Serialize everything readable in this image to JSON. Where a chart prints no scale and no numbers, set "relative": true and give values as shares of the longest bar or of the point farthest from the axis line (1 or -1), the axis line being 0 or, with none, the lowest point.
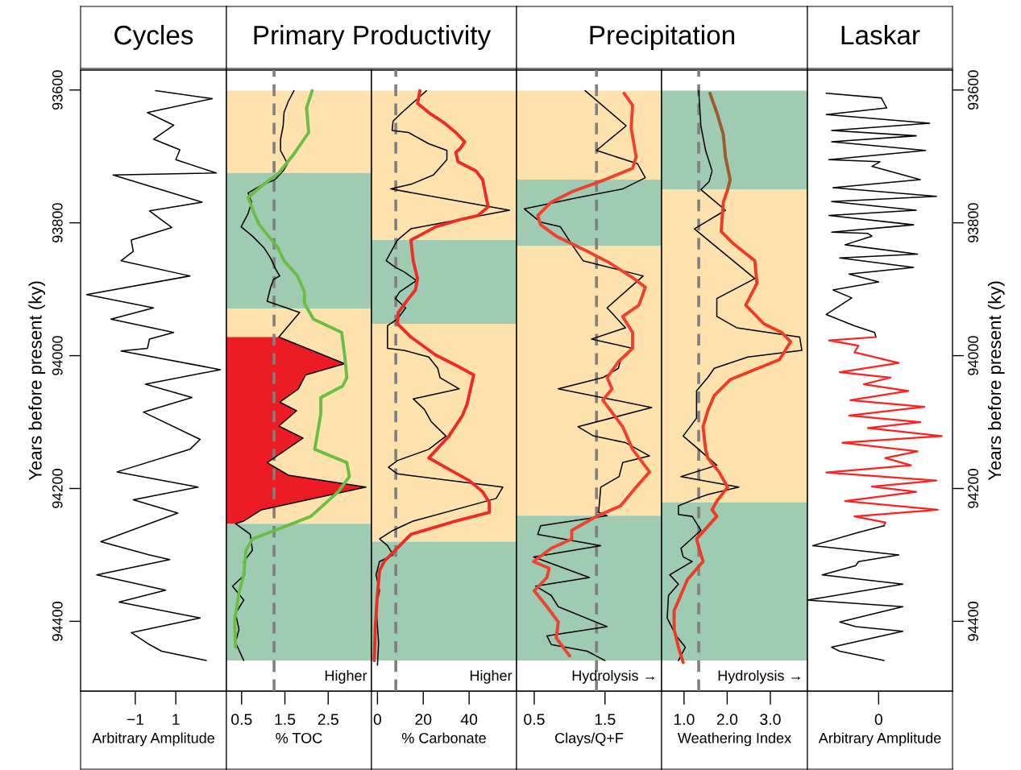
{
  "chart_data": [
    {
      "type": "line",
      "orientation": "horizontal",
      "title": "Cycles",
      "xlabel": "Arbitrary Amplitude",
      "ylabel": "Years before present (ky)",
      "xlim": [
        -3.7,
        3.5
      ],
      "xticks": [
        {
          "value": -1,
          "label": "−1"
        },
        1
      ],
      "ylim": [
        94505,
        93570
      ],
      "yticks": [
        93600,
        93800,
        94000,
        94200,
        94400
      ],
      "series": [
        {
          "type": "line",
          "color": "#000000",
          "x": [
            93601,
            93613,
            93634,
            93653,
            93674,
            93690,
            93705,
            93725,
            93728,
            93769,
            93782,
            93807,
            93826,
            93843,
            93857,
            93880,
            93908,
            93928,
            93945,
            93965,
            93975,
            93989,
            93993,
            94021,
            94043,
            94063,
            94085,
            94126,
            94141,
            94175,
            94198,
            94217,
            94237,
            94280,
            94300,
            94307,
            94330,
            94353,
            94371,
            94395,
            94417,
            94435,
            94445,
            94459
          ],
          "values": [
            0.0,
            2.8,
            -0.4,
            0.9,
            -0.1,
            1.2,
            1.0,
            3.0,
            -2.1,
            2.3,
            -0.3,
            0.8,
            -1.2,
            -1.1,
            -1.7,
            1.7,
            -3.4,
            -0.1,
            -2.2,
            0.9,
            -0.3,
            -0.4,
            -1.7,
            3.2,
            -0.5,
            1.8,
            -0.6,
            2.2,
            1.7,
            -1.9,
            2.1,
            -1.1,
            1.1,
            -2.7,
            -0.3,
            0.7,
            -2.9,
            0.5,
            -1.8,
            2.2,
            -1.2,
            -0.3,
            0.3,
            2.5
          ]
        }
      ]
    },
    {
      "type": "line",
      "orientation": "horizontal",
      "title": "Primary Productivity",
      "xlabel": "% TOC",
      "tick_labels": "x",
      "xlim": [
        0.15,
        3.5
      ],
      "xticks": [
        0.5,
        1.5,
        2.5
      ],
      "ylim": [
        94505,
        93570
      ],
      "bands": [
        {
          "axis": "y",
          "from": 93601,
          "to": 93725,
          "color": "#fde2ad"
        },
        {
          "axis": "y",
          "from": 93725,
          "to": 93929,
          "color": "#9ecbb2"
        },
        {
          "axis": "y",
          "from": 93929,
          "to": 94253,
          "color": "#fde2ad"
        },
        {
          "axis": "y",
          "from": 94253,
          "to": 94459,
          "color": "#9ecbb2"
        }
      ],
      "ref_lines": [
        {
          "axis": "x",
          "value": 1.25,
          "color": "#808080",
          "line_style": "dashed"
        }
      ],
      "annotations": [
        "Higher"
      ],
      "series": [
        {
          "type": "area",
          "color": "#ed1c24",
          "x": [
            93972,
            94012,
            94029,
            94050,
            94070,
            94083,
            94106,
            94124,
            94161,
            94180,
            94198,
            94232,
            94249,
            94253
          ],
          "values": [
            1.36,
            2.88,
            1.98,
            1.81,
            1.38,
            1.77,
            1.36,
            1.92,
            1.09,
            1.58,
            3.37,
            0.96,
            0.55,
            0.36
          ]
        },
        {
          "type": "line",
          "color": "#000000",
          "x": [
            93601,
            93617,
            93634,
            93654,
            93674,
            93691,
            93711,
            93722,
            93735,
            93745,
            93755,
            93769,
            93786,
            93806,
            93820,
            93837,
            93853,
            93870,
            93880,
            93885,
            93897,
            93918,
            93935,
            93972,
            94012,
            94029,
            94050,
            94070,
            94083,
            94106,
            94124,
            94161,
            94180,
            94198,
            94232,
            94249,
            94253,
            94269,
            94293,
            94310,
            94330,
            94347,
            94368,
            94388,
            94412,
            94432,
            94459
          ],
          "values": [
            1.71,
            1.58,
            1.48,
            1.46,
            1.4,
            1.4,
            1.56,
            1.46,
            1.27,
            0.91,
            0.65,
            0.73,
            0.65,
            0.49,
            0.75,
            1.01,
            1.17,
            1.29,
            1.38,
            1.24,
            1.17,
            1.09,
            1.84,
            1.36,
            2.88,
            1.98,
            1.81,
            1.38,
            1.77,
            1.36,
            1.92,
            1.09,
            1.58,
            3.37,
            0.96,
            0.55,
            0.36,
            0.7,
            0.75,
            0.55,
            0.57,
            0.29,
            0.55,
            0.36,
            0.44,
            0.36,
            0.55
          ]
        },
        {
          "type": "line",
          "color": "#6cbd45",
          "x": [
            93601,
            93627,
            93664,
            93698,
            93725,
            93742,
            93762,
            93789,
            93803,
            93820,
            93837,
            93857,
            93880,
            93904,
            93921,
            93945,
            93965,
            93999,
            94033,
            94046,
            94063,
            94087,
            94141,
            94161,
            94182,
            94205,
            94242,
            94263,
            94276,
            94293,
            94330,
            94357,
            94398,
            94439
          ],
          "values": [
            2.13,
            2.0,
            2.05,
            1.69,
            1.36,
            1.01,
            0.65,
            0.81,
            0.91,
            1.12,
            1.33,
            1.48,
            1.79,
            1.95,
            1.95,
            2.16,
            2.81,
            2.88,
            2.93,
            2.83,
            2.33,
            2.33,
            2.19,
            2.93,
            2.99,
            2.73,
            2.1,
            1.27,
            0.75,
            0.6,
            0.55,
            0.44,
            0.34,
            0.36
          ]
        }
      ]
    },
    {
      "type": "line",
      "orientation": "horizontal",
      "xlabel": "% Carbonate",
      "tick_labels": "x",
      "xlim": [
        -2.6,
        60.7
      ],
      "xticks": [
        0,
        20,
        40
      ],
      "ylim": [
        94505,
        93570
      ],
      "bands": [
        {
          "axis": "y",
          "from": 93601,
          "to": 93826,
          "color": "#fde2ad"
        },
        {
          "axis": "y",
          "from": 93826,
          "to": 93952,
          "color": "#9ecbb2"
        },
        {
          "axis": "y",
          "from": 93952,
          "to": 94280,
          "color": "#fde2ad"
        },
        {
          "axis": "y",
          "from": 94280,
          "to": 94459,
          "color": "#9ecbb2"
        }
      ],
      "ref_lines": [
        {
          "axis": "x",
          "value": 8,
          "color": "#808080",
          "line_style": "dashed"
        }
      ],
      "annotations": [
        "Higher"
      ],
      "series": [
        {
          "type": "line",
          "color": "#000000",
          "x": [
            93601,
            93613,
            93634,
            93647,
            93661,
            93664,
            93681,
            93691,
            93705,
            93728,
            93742,
            93749,
            93781,
            93809,
            93826,
            93857,
            93867,
            93874,
            93887,
            93904,
            93914,
            93928,
            93945,
            93955,
            93989,
            93992,
            94002,
            94019,
            94033,
            94050,
            94065,
            94081,
            94099,
            94121,
            94141,
            94158,
            94168,
            94178,
            94198,
            94215,
            94249,
            94263,
            94276,
            94286,
            94300,
            94310,
            94330,
            94354,
            94378,
            94432,
            94466
          ],
          "values": [
            21.4,
            17.5,
            10.7,
            6.8,
            6.4,
            13.6,
            22.4,
            30.3,
            30.3,
            24.4,
            14.6,
            5.8,
            57.6,
            14.6,
            8.7,
            3.8,
            7.8,
            11.7,
            17.0,
            9.7,
            7.8,
            12.3,
            8.7,
            4.4,
            4.4,
            11.7,
            22.4,
            26.3,
            27.3,
            35.7,
            15.6,
            20.5,
            23.4,
            29.9,
            22.4,
            8.7,
            4.8,
            8.7,
            54.7,
            51.8,
            15.6,
            6.8,
            0.9,
            4.4,
            6.8,
            0.9,
            -0.6,
            0.9,
            -0.6,
            0.5,
            0.0
          ]
        },
        {
          "type": "line",
          "color": "#ee2b24",
          "x": [
            93601,
            93620,
            93634,
            93650,
            93664,
            93678,
            93688,
            93694,
            93708,
            93722,
            93735,
            93752,
            93776,
            93789,
            93796,
            93806,
            93826,
            93857,
            93884,
            93901,
            93914,
            93935,
            93952,
            93972,
            93999,
            94016,
            94029,
            94073,
            94090,
            94121,
            94154,
            94171,
            94188,
            94205,
            94221,
            94236,
            94249,
            94269,
            94293,
            94310,
            94324,
            94364,
            94412,
            94459
          ],
          "values": [
            18.5,
            17.5,
            22.4,
            29.3,
            34.2,
            38.1,
            36.1,
            34.2,
            35.1,
            43.0,
            45.9,
            46.9,
            48.3,
            43.9,
            35.1,
            25.4,
            14.6,
            15.6,
            17.5,
            16.6,
            13.6,
            9.1,
            8.7,
            14.6,
            25.4,
            35.1,
            42.0,
            39.1,
            37.1,
            31.2,
            22.4,
            31.2,
            40.0,
            45.9,
            48.8,
            48.8,
            34.2,
            14.6,
            7.8,
            2.9,
            0.9,
            -0.1,
            -1.0,
            -1.4
          ]
        }
      ]
    },
    {
      "type": "line",
      "orientation": "horizontal",
      "title": "Precipitation",
      "xlabel": "Clays/Q+F",
      "tick_labels": "x",
      "xlim": [
        0.25,
        2.3
      ],
      "xticks": [
        0.5,
        1.5
      ],
      "ylim": [
        94505,
        93570
      ],
      "bands": [
        {
          "axis": "y",
          "from": 93601,
          "to": 93735,
          "color": "#fde2ad"
        },
        {
          "axis": "y",
          "from": 93735,
          "to": 93835,
          "color": "#9ecbb2"
        },
        {
          "axis": "y",
          "from": 93835,
          "to": 94241,
          "color": "#fde2ad"
        },
        {
          "axis": "y",
          "from": 94241,
          "to": 94459,
          "color": "#9ecbb2"
        }
      ],
      "ref_lines": [
        {
          "axis": "x",
          "value": 1.38,
          "color": "#808080",
          "line_style": "dashed"
        }
      ],
      "annotations": [
        "Hydrolysis →"
      ],
      "series": [
        {
          "type": "line",
          "color": "#000000",
          "x": [
            93601,
            93654,
            93691,
            93711,
            93732,
            93749,
            93762,
            93779,
            93799,
            93806,
            93837,
            93857,
            93880,
            93928,
            93958,
            93975,
            93989,
            94006,
            94019,
            94033,
            94050,
            94078,
            94107,
            94121,
            94131,
            94151,
            94161,
            94182,
            94198,
            94236,
            94241,
            94256,
            94269,
            94286,
            94303,
            94334,
            94347,
            94361,
            94378,
            94408,
            94422,
            94435,
            94445,
            94459
          ],
          "values": [
            1.22,
            1.8,
            1.38,
            1.96,
            2.07,
            1.75,
            1.12,
            0.36,
            0.59,
            0.87,
            1.06,
            1.19,
            2.04,
            1.53,
            1.79,
            1.31,
            1.89,
            1.72,
            1.69,
            1.47,
            0.84,
            2.16,
            1.12,
            1.34,
            1.79,
            2.13,
            1.75,
            1.7,
            1.44,
            1.41,
            1.53,
            0.59,
            0.55,
            1.44,
            0.49,
            1.28,
            0.52,
            0.74,
            0.84,
            1.53,
            0.68,
            0.74,
            1.25,
            1.5
          ]
        },
        {
          "type": "line",
          "color": "#ef4130",
          "x": [
            93605,
            93623,
            93657,
            93701,
            93718,
            93735,
            93752,
            93769,
            93789,
            93803,
            93820,
            93843,
            93860,
            93884,
            93897,
            93924,
            93941,
            93965,
            93989,
            94009,
            94033,
            94050,
            94067,
            94107,
            94141,
            94175,
            94198,
            94226,
            94242,
            94263,
            94276,
            94290,
            94310,
            94320,
            94334,
            94354,
            94378,
            94401,
            94425,
            94452
          ],
          "values": [
            1.77,
            1.89,
            1.87,
            1.94,
            1.89,
            1.5,
            1.06,
            0.74,
            0.55,
            0.59,
            0.81,
            1.25,
            1.56,
            1.91,
            2.07,
            1.98,
            1.75,
            1.89,
            1.89,
            1.69,
            1.53,
            1.6,
            1.47,
            1.75,
            1.89,
            2.13,
            1.94,
            1.72,
            1.38,
            1.03,
            1.03,
            0.74,
            0.49,
            0.71,
            0.68,
            0.5,
            0.68,
            0.84,
            0.81,
            1.0
          ]
        }
      ]
    },
    {
      "type": "line",
      "orientation": "horizontal",
      "xlabel": "Weathering Index",
      "tick_labels": "x",
      "xlim": [
        0.48,
        3.86
      ],
      "xticks": [
        {
          "value": 1.0,
          "label": "1.0"
        },
        {
          "value": 2.0,
          "label": "2.0"
        },
        {
          "value": 3.0,
          "label": "3.0"
        }
      ],
      "ylim": [
        94505,
        93570
      ],
      "bands": [
        {
          "axis": "y",
          "from": 93601,
          "to": 93750,
          "color": "#9ecbb2"
        },
        {
          "axis": "y",
          "from": 93750,
          "to": 94221,
          "color": "#fde2ad"
        },
        {
          "axis": "y",
          "from": 94221,
          "to": 94459,
          "color": "#9ecbb2"
        }
      ],
      "ref_lines": [
        {
          "axis": "x",
          "value": 1.34,
          "color": "#808080",
          "line_style": "dashed"
        }
      ],
      "annotations": [
        "Hydrolysis →"
      ],
      "series": [
        {
          "type": "line",
          "color": "#000000",
          "x": [
            93601,
            93654,
            93691,
            93722,
            93738,
            93750,
            93781,
            93809,
            93884,
            93914,
            93941,
            93958,
            93972,
            93992,
            94002,
            94019,
            94033,
            94053,
            94094,
            94121,
            94141,
            94165,
            94182,
            94198,
            94209,
            94215,
            94226,
            94239,
            94242,
            94263,
            94290,
            94303,
            94310,
            94330,
            94344,
            94361,
            94395,
            94422,
            94439,
            94459
          ],
          "values": [
            1.34,
            1.39,
            1.5,
            1.65,
            1.58,
            1.39,
            1.96,
            1.24,
            2.64,
            1.76,
            1.76,
            2.22,
            3.68,
            3.73,
            2.48,
            1.7,
            1.55,
            1.29,
            1.29,
            0.98,
            1.34,
            1.76,
            0.93,
            2.27,
            1.55,
            1.29,
            0.87,
            0.87,
            1.19,
            1.39,
            0.93,
            0.98,
            1.19,
            0.67,
            0.87,
            0.64,
            0.61,
            0.82,
            1.03,
            0.87
          ]
        },
        {
          "type": "line",
          "color": "#9c5b2b",
          "x": [
            93605,
            93634,
            93667,
            93701,
            93735,
            93750
          ],
          "values": [
            1.6,
            1.76,
            1.91,
            1.96,
            2.07,
            2.01
          ]
        },
        {
          "type": "line",
          "color": "#ee3a26",
          "x": [
            93750,
            93769,
            93813,
            93830,
            93857,
            93891,
            93924,
            93952,
            93965,
            93979,
            94006,
            94036,
            94060,
            94083,
            94107,
            94141,
            94154,
            94175,
            94198,
            94219,
            94232,
            94242,
            94276,
            94310,
            94337,
            94384,
            94412,
            94439,
            94462
          ],
          "values": [
            2.01,
            1.91,
            1.86,
            2.12,
            2.64,
            2.69,
            2.43,
            2.85,
            3.26,
            3.47,
            3.21,
            2.07,
            1.7,
            1.55,
            1.44,
            1.5,
            1.55,
            1.81,
            2.01,
            1.76,
            1.65,
            1.76,
            1.29,
            1.44,
            1.08,
            0.77,
            0.77,
            0.87,
            0.98
          ]
        }
      ]
    },
    {
      "type": "line",
      "orientation": "horizontal",
      "title": "Laskar",
      "xlabel": "Arbitrary Amplitude",
      "ylabel": "Years before present (ky)",
      "relative": true,
      "annotations": [
        {
          "text": "0",
          "x": 0.53
        }
      ],
      "ylim": [
        94505,
        93570
      ],
      "yticks": [
        93600,
        93800,
        94000,
        94200,
        94400
      ],
      "series": [
        {
          "type": "line",
          "color": "#000000",
          "x": [
            93605,
            93612,
            93627,
            93637,
            93650,
            93661,
            93669,
            93678,
            93691,
            93705,
            93708,
            93715,
            93735,
            93747,
            93760,
            93768,
            93781,
            93789,
            93803,
            93814,
            93816,
            93820,
            93833,
            93847,
            93853,
            93867,
            93877,
            93889,
            93901,
            93913,
            93938,
            93955,
            93965,
            93972
          ],
          "values": [
            0.14,
            0.55,
            0.59,
            0.14,
            0.91,
            0.18,
            0.81,
            0.18,
            0.88,
            0.16,
            0.54,
            0.48,
            0.84,
            0.19,
            0.96,
            0.18,
            0.81,
            0.16,
            0.79,
            0.18,
            0.45,
            0.48,
            0.28,
            0.82,
            0.24,
            0.79,
            0.31,
            0.53,
            0.19,
            0.33,
            0.14,
            0.35,
            0.5,
            0.51
          ]
        },
        {
          "type": "line",
          "color": "#ff2020",
          "x": [
            93972,
            93977,
            93985,
            93995,
            94011,
            94025,
            94033,
            94043,
            94053,
            94067,
            94077,
            94090,
            94100,
            94109,
            94121,
            94131,
            94144,
            94154,
            94165,
            94176,
            94188,
            94197,
            94205,
            94219,
            94232,
            94242,
            94251,
            94256
          ],
          "values": [
            0.51,
            0.16,
            0.38,
            0.35,
            0.68,
            0.24,
            0.62,
            0.42,
            0.75,
            0.32,
            0.87,
            0.31,
            0.84,
            0.45,
            1.0,
            0.26,
            0.82,
            0.58,
            0.77,
            0.14,
            0.96,
            0.48,
            0.81,
            0.28,
            0.97,
            0.35,
            0.58,
            0.57
          ]
        },
        {
          "type": "line",
          "color": "#000000",
          "x": [
            94256,
            94266,
            94286,
            94300,
            94310,
            94316,
            94330,
            94344,
            94368,
            94378,
            94401,
            94408,
            94415,
            94439,
            94445,
            94459
          ],
          "values": [
            0.57,
            0.38,
            0.04,
            0.68,
            0.38,
            0.36,
            0.11,
            0.71,
            0.0,
            0.71,
            0.24,
            0.36,
            0.71,
            0.18,
            0.24,
            0.57
          ]
        }
      ]
    }
  ]
}
